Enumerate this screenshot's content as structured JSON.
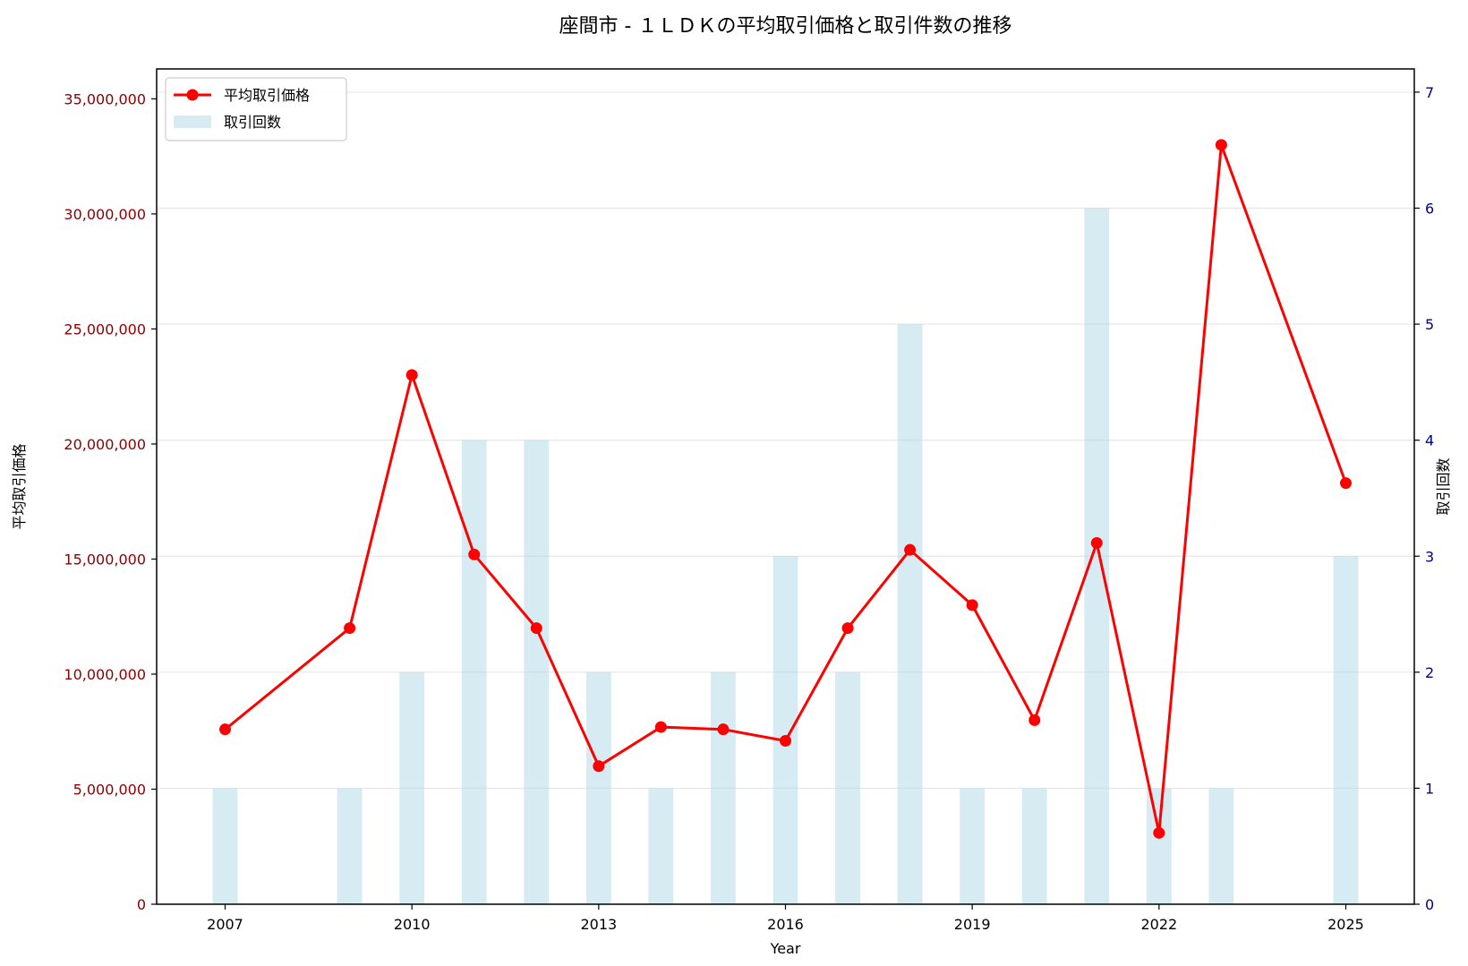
{
  "chart_data": {
    "type": "bar+line",
    "title": "座間市 - １ＬＤＫの平均取引価格と取引件数の推移",
    "xlabel": "Year",
    "ylabel_left": "平均取引価格",
    "ylabel_right": "取引回数",
    "xlim": [
      2005.9,
      2026.1
    ],
    "ylim_left": [
      0,
      36300000
    ],
    "ylim_right": [
      0,
      7.2
    ],
    "x_ticks": [
      "2007",
      "2010",
      "2013",
      "2016",
      "2019",
      "2022",
      "2025"
    ],
    "y_left_ticks": [
      "0",
      "5,000,000",
      "10,000,000",
      "15,000,000",
      "20,000,000",
      "25,000,000",
      "30,000,000",
      "35,000,000"
    ],
    "y_right_ticks": [
      "0",
      "1",
      "2",
      "3",
      "4",
      "5",
      "6",
      "7"
    ],
    "grid": true,
    "legend_position": "top-left",
    "series": [
      {
        "name": "平均取引価格",
        "type": "line",
        "axis": "left",
        "color": "#ff0000",
        "x": [
          2007,
          2009,
          2010,
          2011,
          2012,
          2013,
          2014,
          2015,
          2016,
          2017,
          2018,
          2019,
          2020,
          2021,
          2022,
          2023,
          2025
        ],
        "values": [
          7600000,
          12000000,
          23000000,
          15200000,
          12000000,
          6000000,
          7700000,
          7600000,
          7100000,
          12000000,
          15400000,
          13000000,
          8000000,
          15700000,
          3100000,
          33000000,
          18300000
        ]
      },
      {
        "name": "取引回数",
        "type": "bar",
        "axis": "right",
        "color": "#add8e6",
        "x": [
          2007,
          2009,
          2010,
          2011,
          2012,
          2013,
          2014,
          2015,
          2016,
          2017,
          2018,
          2019,
          2020,
          2021,
          2022,
          2023,
          2025
        ],
        "values": [
          1,
          1,
          2,
          4,
          4,
          2,
          1,
          2,
          3,
          2,
          5,
          1,
          1,
          6,
          1,
          1,
          3
        ]
      }
    ]
  }
}
